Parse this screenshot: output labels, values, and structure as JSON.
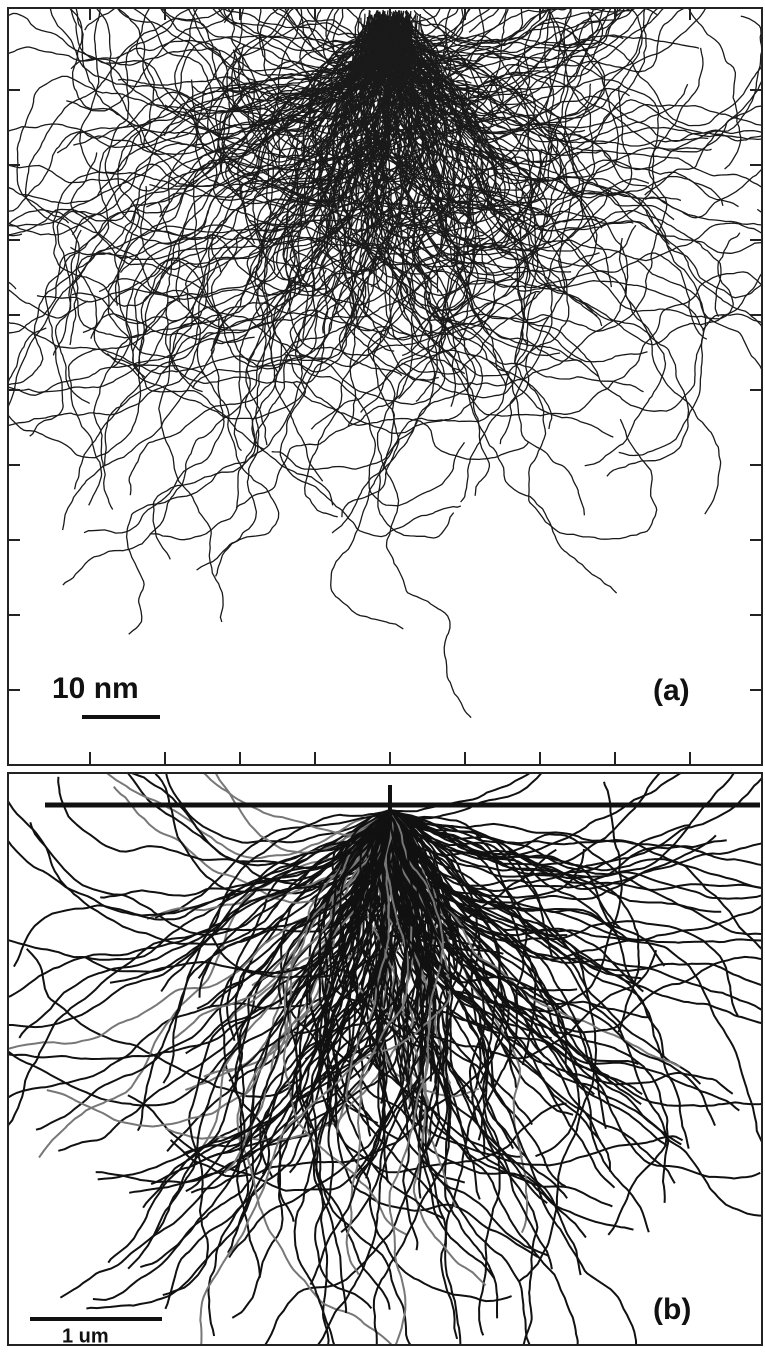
{
  "panel_a": {
    "scale_label": "10 nm",
    "panel_label": "(a)"
  },
  "panel_b": {
    "scale_label": "1 um",
    "panel_label": "(b)"
  }
}
